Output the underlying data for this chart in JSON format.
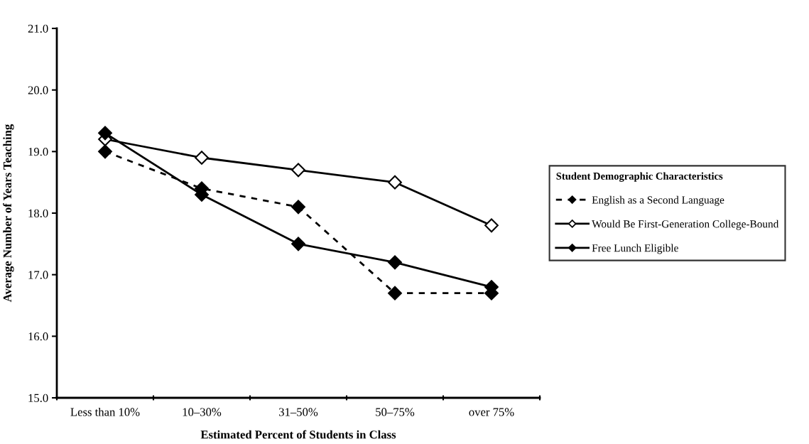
{
  "chart_data": {
    "type": "line",
    "xlabel": "Estimated Percent of Students in Class",
    "ylabel": "Average Number of Years Teaching",
    "legend_title": "Student Demographic Characteristics",
    "categories": [
      "Less than 10%",
      "10–30%",
      "31–50%",
      "50–75%",
      "over 75%"
    ],
    "series": [
      {
        "name": "English as a Second Language",
        "color": "#000000",
        "line_style": "dashed",
        "marker": "diamond",
        "values": [
          19.0,
          18.4,
          18.1,
          16.7,
          16.7
        ]
      },
      {
        "name": "Would Be First-Generation College-Bound",
        "color": "#000000",
        "line_style": "solid",
        "marker": "diamond",
        "values": [
          19.2,
          18.9,
          18.7,
          18.5,
          17.8
        ]
      },
      {
        "name": "Free Lunch Eligible",
        "color": "#000000",
        "line_style": "solid",
        "marker": "diamond",
        "values": [
          19.3,
          18.3,
          17.5,
          17.2,
          16.8
        ]
      }
    ],
    "ylim": [
      15.0,
      21.0
    ],
    "yticks": [
      {
        "value": 15,
        "label": "15.0"
      },
      {
        "value": 16,
        "label": "16.0"
      },
      {
        "value": 17,
        "label": "17.0"
      },
      {
        "value": 18,
        "label": "18.0"
      },
      {
        "value": 19,
        "label": "19.0"
      },
      {
        "value": 20,
        "label": "20.0"
      },
      {
        "value": 21,
        "label": "21.0"
      }
    ],
    "grid": false,
    "legend": "right"
  }
}
